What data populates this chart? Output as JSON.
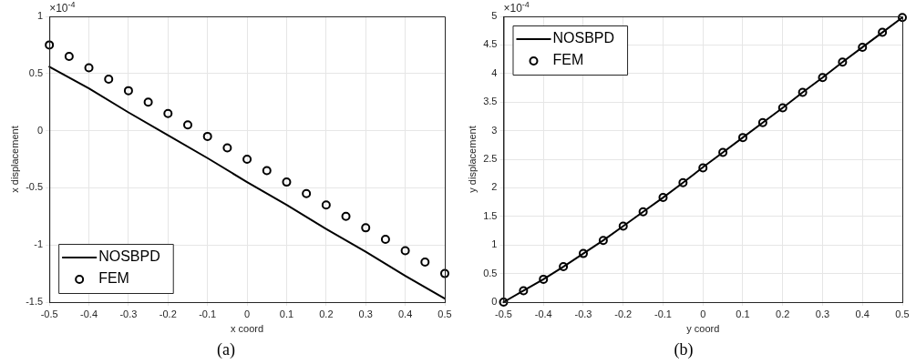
{
  "chart_data": [
    {
      "type": "line",
      "title": "(a)",
      "xlabel": "x coord",
      "ylabel": "x displacement",
      "annotations": [
        "×10$^{-4}$"
      ],
      "xlim": [
        -0.5,
        0.5
      ],
      "xticks": [
        -0.5,
        -0.4,
        -0.3,
        -0.2,
        -0.1,
        0,
        0.1,
        0.2,
        0.3,
        0.4,
        0.5
      ],
      "ylim": [
        -1.5,
        1
      ],
      "yticks": [
        -1.5,
        -1,
        -0.5,
        0,
        0.5,
        1
      ],
      "grid": true,
      "legend": "bottom left",
      "series": [
        {
          "name": "NOSBPD",
          "color": "#000000",
          "type": "line",
          "marker": "none",
          "line_style": "solid",
          "x": [
            -0.5,
            -0.4,
            -0.3,
            -0.2,
            -0.1,
            0,
            0.1,
            0.2,
            0.3,
            0.4,
            0.5
          ],
          "values": [
            0.56,
            0.37,
            0.16,
            -0.04,
            -0.24,
            -0.45,
            -0.65,
            -0.86,
            -1.06,
            -1.27,
            -1.47
          ]
        },
        {
          "name": "FEM",
          "color": "#000000",
          "type": "scatter",
          "marker": "circle",
          "x": [
            -0.5,
            -0.45,
            -0.4,
            -0.35,
            -0.3,
            -0.25,
            -0.2,
            -0.15,
            -0.1,
            -0.05,
            0,
            0.05,
            0.1,
            0.15,
            0.2,
            0.25,
            0.3,
            0.35,
            0.4,
            0.45,
            0.5
          ],
          "values": [
            0.75,
            0.65,
            0.55,
            0.45,
            0.35,
            0.25,
            0.15,
            0.05,
            -0.05,
            -0.15,
            -0.25,
            -0.35,
            -0.45,
            -0.55,
            -0.65,
            -0.75,
            -0.85,
            -0.95,
            -1.05,
            -1.15,
            -1.25
          ]
        }
      ]
    },
    {
      "type": "line",
      "title": "(b)",
      "xlabel": "y coord",
      "ylabel": "y displacement",
      "annotations": [
        "×10$^{-4}$"
      ],
      "xlim": [
        -0.5,
        0.5
      ],
      "xticks": [
        -0.5,
        -0.4,
        -0.3,
        -0.2,
        -0.1,
        0,
        0.1,
        0.2,
        0.3,
        0.4,
        0.5
      ],
      "ylim": [
        0,
        5
      ],
      "yticks": [
        0,
        0.5,
        1,
        1.5,
        2,
        2.5,
        3,
        3.5,
        4,
        4.5,
        5
      ],
      "grid": true,
      "legend": "top left",
      "series": [
        {
          "name": "NOSBPD",
          "color": "#000000",
          "type": "line",
          "marker": "none",
          "line_style": "solid",
          "x": [
            -0.5,
            -0.45,
            -0.4,
            -0.35,
            -0.3,
            -0.25,
            -0.2,
            -0.15,
            -0.1,
            -0.05,
            0,
            0.05,
            0.1,
            0.15,
            0.2,
            0.25,
            0.3,
            0.35,
            0.4,
            0.45,
            0.5
          ],
          "values": [
            0,
            0.2,
            0.4,
            0.62,
            0.85,
            1.08,
            1.33,
            1.58,
            1.83,
            2.09,
            2.36,
            2.62,
            2.88,
            3.14,
            3.4,
            3.67,
            3.93,
            4.2,
            4.46,
            4.72,
            4.98
          ]
        },
        {
          "name": "FEM",
          "color": "#000000",
          "type": "scatter",
          "marker": "circle",
          "x": [
            -0.5,
            -0.45,
            -0.4,
            -0.35,
            -0.3,
            -0.25,
            -0.2,
            -0.15,
            -0.1,
            -0.05,
            0,
            0.05,
            0.1,
            0.15,
            0.2,
            0.25,
            0.3,
            0.35,
            0.4,
            0.45,
            0.5
          ],
          "values": [
            0,
            0.2,
            0.4,
            0.62,
            0.85,
            1.08,
            1.33,
            1.58,
            1.83,
            2.09,
            2.35,
            2.62,
            2.88,
            3.14,
            3.4,
            3.67,
            3.93,
            4.2,
            4.46,
            4.72,
            4.98
          ]
        }
      ]
    }
  ]
}
